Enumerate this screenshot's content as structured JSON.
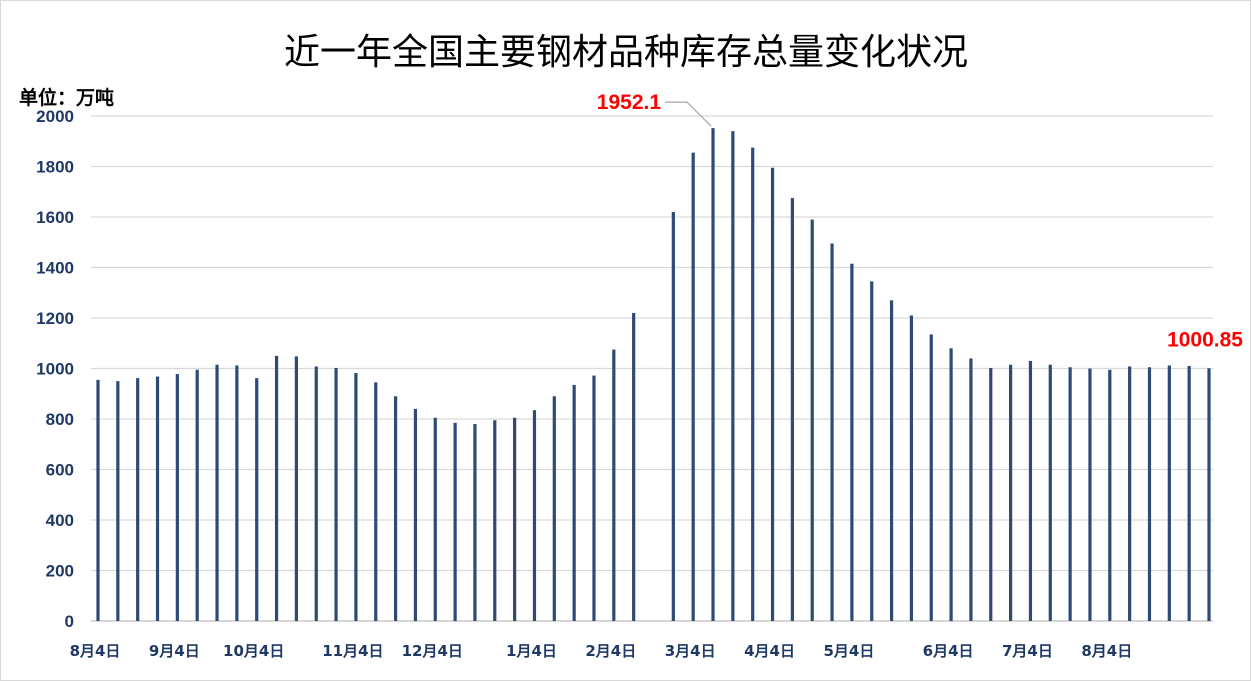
{
  "chart_data": {
    "type": "bar",
    "title": "近一年全国主要钢材品种库存总量变化状况",
    "unit_label": "单位：万吨",
    "ylim": [
      0,
      2000
    ],
    "y_ticks": [
      "0",
      "200",
      "400",
      "600",
      "800",
      "1000",
      "1200",
      "1400",
      "1600",
      "1800",
      "2000"
    ],
    "grid": true,
    "legend": "none",
    "x_tick_labels": [
      {
        "label": "8月4日",
        "index": 0
      },
      {
        "label": "9月4日",
        "index": 4
      },
      {
        "label": "10月4日",
        "index": 8
      },
      {
        "label": "11月4日",
        "index": 13
      },
      {
        "label": "12月4日",
        "index": 17
      },
      {
        "label": "1月4日",
        "index": 22
      },
      {
        "label": "2月4日",
        "index": 26
      },
      {
        "label": "3月4日",
        "index": 30
      },
      {
        "label": "4月4日",
        "index": 34
      },
      {
        "label": "5月4日",
        "index": 38
      },
      {
        "label": "6月4日",
        "index": 43
      },
      {
        "label": "7月4日",
        "index": 47
      },
      {
        "label": "8月4日",
        "index": 51
      }
    ],
    "values": [
      955,
      950,
      962,
      968,
      978,
      995,
      1015,
      1012,
      962,
      1050,
      1048,
      1008,
      1002,
      982,
      945,
      890,
      840,
      805,
      785,
      780,
      795,
      805,
      835,
      890,
      935,
      972,
      1075,
      1220,
      null,
      1620,
      1855,
      1952.1,
      1940,
      1875,
      1795,
      1675,
      1590,
      1495,
      1415,
      1345,
      1270,
      1210,
      1135,
      1080,
      1040,
      1002,
      1015,
      1030,
      1015,
      1005,
      1000,
      995,
      1008,
      1005,
      1012,
      1010,
      1000.85
    ],
    "annotations": [
      {
        "text": "1952.1",
        "index": 31,
        "color": "#ff0000",
        "leader_line": true
      },
      {
        "text": "1000.85",
        "index": 56,
        "color": "#ff0000",
        "leader_line": false
      }
    ],
    "bar_color": "#2e4a76"
  }
}
